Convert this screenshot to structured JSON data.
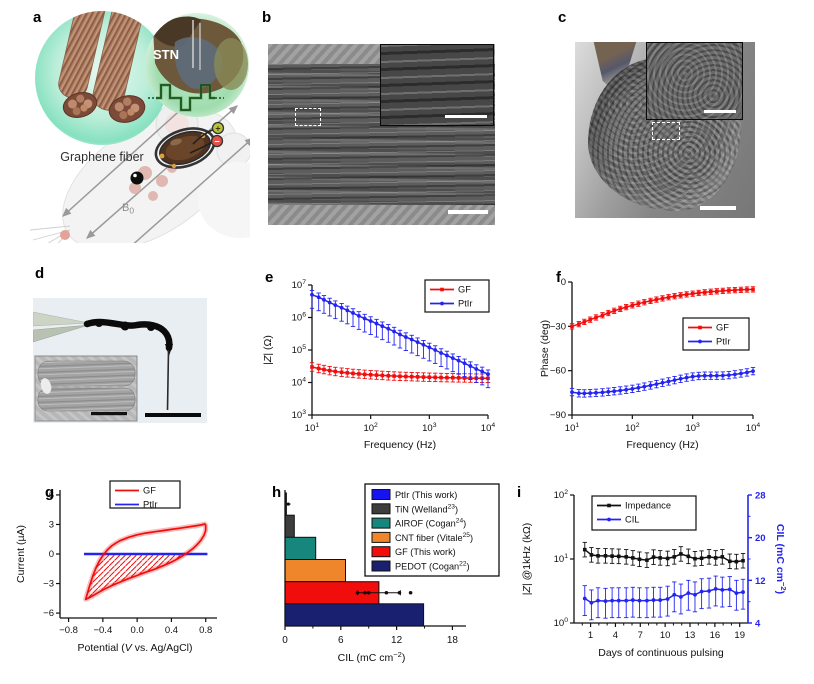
{
  "figure": {
    "panels": {
      "a": {
        "label": "a",
        "graphene_caption": "Graphene fiber",
        "stn_caption": "STN",
        "field_b": "B",
        "field_sub": "0",
        "plus": "+",
        "minus": "−"
      },
      "b": {
        "label": "b"
      },
      "c": {
        "label": "c"
      },
      "d": {
        "label": "d"
      },
      "e": {
        "label": "e"
      },
      "f": {
        "label": "f"
      },
      "g": {
        "label": "g"
      },
      "h": {
        "label": "h"
      },
      "i": {
        "label": "i"
      }
    }
  },
  "chart_data": [
    {
      "id": "e",
      "type": "line",
      "x": {
        "scale": "log",
        "lim_exp": [
          1,
          4
        ],
        "ticks_exp": [
          1,
          2,
          3,
          4
        ]
      },
      "y": {
        "scale": "log",
        "lim_exp": [
          3,
          7
        ],
        "ticks_exp": [
          3,
          4,
          5,
          6,
          7
        ]
      },
      "xlabel": [
        {
          "t": "Frequency (Hz)"
        }
      ],
      "ylabel": [
        {
          "t": "|"
        },
        {
          "t": "Z",
          "i": true
        },
        {
          "t": "| (Ω)"
        }
      ],
      "legend": [
        {
          "label": "GF",
          "color": "#f20d0d",
          "marker": "square"
        },
        {
          "label": "PtIr",
          "color": "#2424f0",
          "marker": "circle"
        }
      ],
      "series": [
        {
          "name": "GF",
          "color": "#f20d0d",
          "marker": "square",
          "err": {
            "mode": "factor",
            "lo": 1.35,
            "hi": 1.35
          },
          "x": [
            10,
            13,
            16,
            20,
            25,
            32,
            40,
            50,
            63,
            79,
            100,
            126,
            158,
            200,
            251,
            316,
            398,
            501,
            631,
            794,
            1000,
            1259,
            1585,
            1995,
            2512,
            3162,
            3981,
            5012,
            6310,
            7943,
            10000
          ],
          "y": [
            30000,
            27000,
            25000,
            23200,
            21800,
            20700,
            19800,
            19000,
            18400,
            17800,
            17300,
            16900,
            16500,
            16100,
            15800,
            15500,
            15300,
            15100,
            14900,
            14700,
            14500,
            14400,
            14200,
            14100,
            14000,
            13900,
            13800,
            13700,
            13600,
            13550,
            13500
          ]
        },
        {
          "name": "PtIr",
          "color": "#2424f0",
          "marker": "circle",
          "err": {
            "mode": "factor",
            "lo": 2.6,
            "hi": 1.35
          },
          "x": [
            10,
            13,
            16,
            20,
            25,
            32,
            40,
            50,
            63,
            79,
            100,
            126,
            158,
            200,
            251,
            316,
            398,
            501,
            631,
            794,
            1000,
            1259,
            1585,
            1995,
            2512,
            3162,
            3981,
            5012,
            6310,
            7943,
            10000
          ],
          "y": [
            5000000,
            4200000,
            3500000,
            2900000,
            2400000,
            2000000,
            1660000,
            1380000,
            1120000,
            930000,
            780000,
            650000,
            540000,
            450000,
            370000,
            300000,
            250000,
            210000,
            174000,
            145000,
            120000,
            100000,
            81000,
            68000,
            56000,
            47000,
            39000,
            32000,
            26000,
            22000,
            18000
          ]
        }
      ]
    },
    {
      "id": "f",
      "type": "line",
      "x": {
        "scale": "log",
        "lim_exp": [
          1,
          4
        ],
        "ticks_exp": [
          1,
          2,
          3,
          4
        ]
      },
      "y": {
        "scale": "linear",
        "lim": [
          -90,
          0
        ],
        "ticks": [
          {
            "v": 0,
            "l": "0"
          },
          {
            "v": -30,
            "l": "−30"
          },
          {
            "v": -60,
            "l": "−60"
          },
          {
            "v": -90,
            "l": "−90"
          }
        ]
      },
      "xlabel": [
        {
          "t": "Frequency (Hz)"
        }
      ],
      "ylabel": [
        {
          "t": "Phase (deg)"
        }
      ],
      "legend": [
        {
          "label": "GF",
          "color": "#f20d0d",
          "marker": "square"
        },
        {
          "label": "PtIr",
          "color": "#2424f0",
          "marker": "circle"
        }
      ],
      "series": [
        {
          "name": "GF",
          "color": "#f20d0d",
          "marker": "square",
          "err": {
            "mode": "abs",
            "lo": 1.8,
            "hi": 1.8
          },
          "x": [
            10,
            13,
            16,
            20,
            25,
            32,
            40,
            50,
            63,
            79,
            100,
            126,
            158,
            200,
            251,
            316,
            398,
            501,
            631,
            794,
            1000,
            1259,
            1585,
            1995,
            2512,
            3162,
            3981,
            5012,
            6310,
            7943,
            10000
          ],
          "y": [
            -30,
            -28.5,
            -27,
            -25.5,
            -24,
            -22.5,
            -21,
            -19.5,
            -18.2,
            -17,
            -15.8,
            -14.7,
            -13.7,
            -12.8,
            -11.9,
            -11.1,
            -10.3,
            -9.6,
            -9,
            -8.4,
            -7.9,
            -7.4,
            -7,
            -6.6,
            -6.3,
            -6,
            -5.7,
            -5.5,
            -5.3,
            -5.1,
            -5
          ]
        },
        {
          "name": "PtIr",
          "color": "#2424f0",
          "marker": "circle",
          "err": {
            "mode": "abs",
            "lo": 2.5,
            "hi": 2.5
          },
          "x": [
            10,
            13,
            16,
            20,
            25,
            32,
            40,
            50,
            63,
            79,
            100,
            126,
            158,
            200,
            251,
            316,
            398,
            501,
            631,
            794,
            1000,
            1259,
            1585,
            1995,
            2512,
            3162,
            3981,
            5012,
            6310,
            7943,
            10000
          ],
          "y": [
            -74.5,
            -75.3,
            -75.4,
            -75.2,
            -75,
            -74.7,
            -74.3,
            -73.9,
            -73.4,
            -72.9,
            -72.3,
            -71.6,
            -70.8,
            -70,
            -69.1,
            -68.2,
            -67.3,
            -66.4,
            -65.5,
            -64.7,
            -64,
            -63.6,
            -63.4,
            -63.4,
            -63.4,
            -63.3,
            -63,
            -62.5,
            -61.9,
            -61.2,
            -60.3
          ]
        }
      ]
    },
    {
      "id": "g",
      "type": "cv",
      "gf_color": "#f20d0d",
      "ptir_color": "#2424f0",
      "x": {
        "scale": "linear",
        "lim": [
          -0.9,
          0.85
        ],
        "ticks": [
          {
            "v": -0.8,
            "l": "−0.8"
          },
          {
            "v": -0.4,
            "l": "−0.4"
          },
          {
            "v": 0,
            "l": "0.0"
          },
          {
            "v": 0.4,
            "l": "0.4"
          },
          {
            "v": 0.8,
            "l": "0.8"
          }
        ]
      },
      "y": {
        "scale": "linear",
        "lim": [
          -6.5,
          6.5
        ],
        "ticks": [
          {
            "v": 6,
            "l": "6"
          },
          {
            "v": 3,
            "l": "3"
          },
          {
            "v": 0,
            "l": "0"
          },
          {
            "v": -3,
            "l": "−3"
          },
          {
            "v": -6,
            "l": "−6"
          }
        ]
      },
      "xlabel": [
        {
          "t": "Potential ("
        },
        {
          "t": "V",
          "i": true
        },
        {
          "t": " vs. Ag/AgCl)"
        }
      ],
      "ylabel": [
        {
          "t": "Current (µA)"
        }
      ],
      "legend": [
        {
          "label": "GF",
          "color": "#f20d0d",
          "marker": "none"
        },
        {
          "label": "PtIr",
          "color": "#2424f0",
          "marker": "none"
        }
      ],
      "ptir_line_y": 0,
      "loop": [
        [
          -0.6,
          -4.6
        ],
        [
          -0.56,
          -3.4
        ],
        [
          -0.52,
          -2.3
        ],
        [
          -0.48,
          -1.4
        ],
        [
          -0.44,
          -0.7
        ],
        [
          -0.4,
          -0.15
        ],
        [
          -0.35,
          0.4
        ],
        [
          -0.3,
          0.8
        ],
        [
          -0.25,
          1.1
        ],
        [
          -0.2,
          1.35
        ],
        [
          -0.1,
          1.7
        ],
        [
          0,
          1.95
        ],
        [
          0.1,
          2.12
        ],
        [
          0.2,
          2.25
        ],
        [
          0.3,
          2.38
        ],
        [
          0.4,
          2.5
        ],
        [
          0.5,
          2.62
        ],
        [
          0.6,
          2.75
        ],
        [
          0.68,
          2.85
        ],
        [
          0.74,
          2.95
        ],
        [
          0.79,
          3.05
        ],
        [
          0.8,
          2.9
        ],
        [
          0.8,
          2.4
        ],
        [
          0.78,
          1.9
        ],
        [
          0.74,
          1.35
        ],
        [
          0.7,
          0.95
        ],
        [
          0.65,
          0.55
        ],
        [
          0.6,
          0.22
        ],
        [
          0.55,
          -0.08
        ],
        [
          0.5,
          -0.35
        ],
        [
          0.45,
          -0.6
        ],
        [
          0.4,
          -0.82
        ],
        [
          0.3,
          -1.2
        ],
        [
          0.2,
          -1.55
        ],
        [
          0.1,
          -1.85
        ],
        [
          0,
          -2.18
        ],
        [
          -0.1,
          -2.5
        ],
        [
          -0.2,
          -2.85
        ],
        [
          -0.3,
          -3.22
        ],
        [
          -0.4,
          -3.65
        ],
        [
          -0.48,
          -4.05
        ],
        [
          -0.54,
          -4.35
        ],
        [
          -0.6,
          -4.6
        ]
      ],
      "hatch_region": [
        [
          -0.39,
          0
        ],
        [
          0.565,
          0
        ],
        [
          0.55,
          -0.08
        ],
        [
          0.5,
          -0.35
        ],
        [
          0.45,
          -0.6
        ],
        [
          0.4,
          -0.82
        ],
        [
          0.3,
          -1.2
        ],
        [
          0.2,
          -1.55
        ],
        [
          0.1,
          -1.85
        ],
        [
          0,
          -2.18
        ],
        [
          -0.1,
          -2.5
        ],
        [
          -0.2,
          -2.85
        ],
        [
          -0.3,
          -3.22
        ],
        [
          -0.4,
          -3.65
        ],
        [
          -0.48,
          -4.05
        ],
        [
          -0.54,
          -4.35
        ],
        [
          -0.6,
          -4.6
        ],
        [
          -0.56,
          -3.4
        ],
        [
          -0.52,
          -2.3
        ],
        [
          -0.48,
          -1.4
        ],
        [
          -0.44,
          -0.7
        ],
        [
          -0.39,
          0
        ]
      ]
    },
    {
      "id": "h",
      "type": "barh",
      "x": {
        "scale": "linear",
        "lim": [
          0,
          18.6
        ],
        "ticks": [
          {
            "v": 0,
            "l": "0"
          },
          {
            "v": 6,
            "l": "6"
          },
          {
            "v": 12,
            "l": "12"
          },
          {
            "v": 18,
            "l": "18"
          }
        ],
        "minor": [
          3,
          9,
          15
        ]
      },
      "xlabel": [
        {
          "t": "CIL (mC cm"
        },
        {
          "t": "−2",
          "sup": true
        },
        {
          "t": ")"
        }
      ],
      "bars": [
        {
          "name": "PtIr (This work)",
          "pre": "PtIr (This work)",
          "sup": "",
          "post": "",
          "color": "#1612f0",
          "value": 0.15
        },
        {
          "name": "TiN (Welland23)",
          "pre": "TiN (Welland",
          "sup": "23",
          "post": ")",
          "color": "#3d3d3d",
          "value": 1.0
        },
        {
          "name": "AIROF (Cogan24)",
          "pre": "AIROF (Cogan",
          "sup": "24",
          "post": ")",
          "color": "#17867c",
          "value": 3.3
        },
        {
          "name": "CNT fiber (Vitale25)",
          "pre": "CNT fiber (Vitale",
          "sup": "25",
          "post": ")",
          "color": "#f0862c",
          "value": 6.5
        },
        {
          "name": "GF (This work)",
          "pre": "GF (This work)",
          "sup": "",
          "post": "",
          "color": "#f20d0d",
          "value": 10.1
        },
        {
          "name": "PEDOT (Cogan22)",
          "pre": "PEDOT (Cogan",
          "sup": "22",
          "post": ")",
          "color": "#1a2070",
          "value": 14.9
        }
      ],
      "gf_row": 4,
      "gf_points": [
        7.8,
        8.6,
        9.0,
        10.9,
        12.3,
        13.5
      ],
      "gf_err": {
        "lo": 7.8,
        "hi": 12.4
      },
      "ptir_point": {
        "v": 0.35,
        "lo": 0.12,
        "hi": 0.6
      }
    },
    {
      "id": "i",
      "type": "line",
      "x": {
        "scale": "linear",
        "lim": [
          -1,
          20
        ],
        "ticks": [
          {
            "v": 1,
            "l": "1"
          },
          {
            "v": 4,
            "l": "4"
          },
          {
            "v": 7,
            "l": "7"
          },
          {
            "v": 10,
            "l": "10"
          },
          {
            "v": 13,
            "l": "13"
          },
          {
            "v": 16,
            "l": "16"
          },
          {
            "v": 19,
            "l": "19"
          }
        ],
        "minor": [
          0,
          2,
          3,
          5,
          6,
          8,
          9,
          11,
          12,
          14,
          15,
          17,
          18
        ]
      },
      "y": {
        "scale": "log",
        "lim_exp": [
          0,
          2
        ],
        "ticks_exp": [
          0,
          1,
          2
        ]
      },
      "y2": {
        "scale": "linear",
        "lim": [
          4,
          28
        ],
        "ticks": [
          {
            "v": 4,
            "l": "4"
          },
          {
            "v": 12,
            "l": "12"
          },
          {
            "v": 20,
            "l": "20"
          },
          {
            "v": 28,
            "l": "28"
          }
        ],
        "minor": [
          8,
          16,
          24
        ],
        "color": "#2424f0"
      },
      "xlabel": [
        {
          "t": "Days of continuous pulsing"
        }
      ],
      "ylabel": [
        {
          "t": "|"
        },
        {
          "t": "Z",
          "i": true
        },
        {
          "t": "| @1kHz (kΩ)"
        }
      ],
      "y2label": [
        {
          "t": "CIL (mC cm"
        },
        {
          "t": "−2",
          "sup": true
        },
        {
          "t": ")"
        }
      ],
      "legend": [
        {
          "label": "Impedance",
          "color": "#111111",
          "marker": "square"
        },
        {
          "label": "CIL",
          "color": "#2424f0",
          "marker": "circle"
        }
      ],
      "series": [
        {
          "name": "Impedance",
          "axis": "y",
          "color": "#111111",
          "marker": "square",
          "err": {
            "mode": "factor",
            "lo": 1.3,
            "hi": 1.3
          },
          "x": [
            0.3,
            1.1,
            1.9,
            2.8,
            3.6,
            4.4,
            5.3,
            6.1,
            6.9,
            7.8,
            8.6,
            9.4,
            10.3,
            11.1,
            11.9,
            12.8,
            13.6,
            14.4,
            15.3,
            16.1,
            16.9,
            17.8,
            18.6,
            19.4
          ],
          "y": [
            14,
            11.6,
            11.2,
            11.2,
            11.1,
            11,
            10.8,
            10.4,
            9.9,
            9.6,
            10.7,
            10.4,
            10.2,
            10.8,
            12,
            11,
            10.1,
            10.3,
            10.8,
            10.4,
            10.8,
            9.2,
            9.1,
            9.4
          ]
        },
        {
          "name": "CIL",
          "axis": "y2",
          "color": "#2424f0",
          "marker": "circle",
          "err": {
            "mode": "abs",
            "lo": 3.2,
            "hi": 2.4
          },
          "x": [
            0.3,
            1.1,
            1.9,
            2.8,
            3.6,
            4.4,
            5.3,
            6.1,
            6.9,
            7.8,
            8.6,
            9.4,
            10.3,
            11.1,
            11.9,
            12.8,
            13.6,
            14.4,
            15.3,
            16.1,
            16.9,
            17.8,
            18.6,
            19.4
          ],
          "y": [
            8.6,
            7.8,
            8.2,
            8.1,
            8.2,
            8.2,
            8.2,
            8.3,
            8.2,
            8.2,
            8.3,
            8.3,
            8.5,
            9.3,
            8.9,
            9.6,
            9.3,
            9.9,
            10,
            10.4,
            10.2,
            10.3,
            9.6,
            9.8
          ]
        }
      ]
    }
  ]
}
